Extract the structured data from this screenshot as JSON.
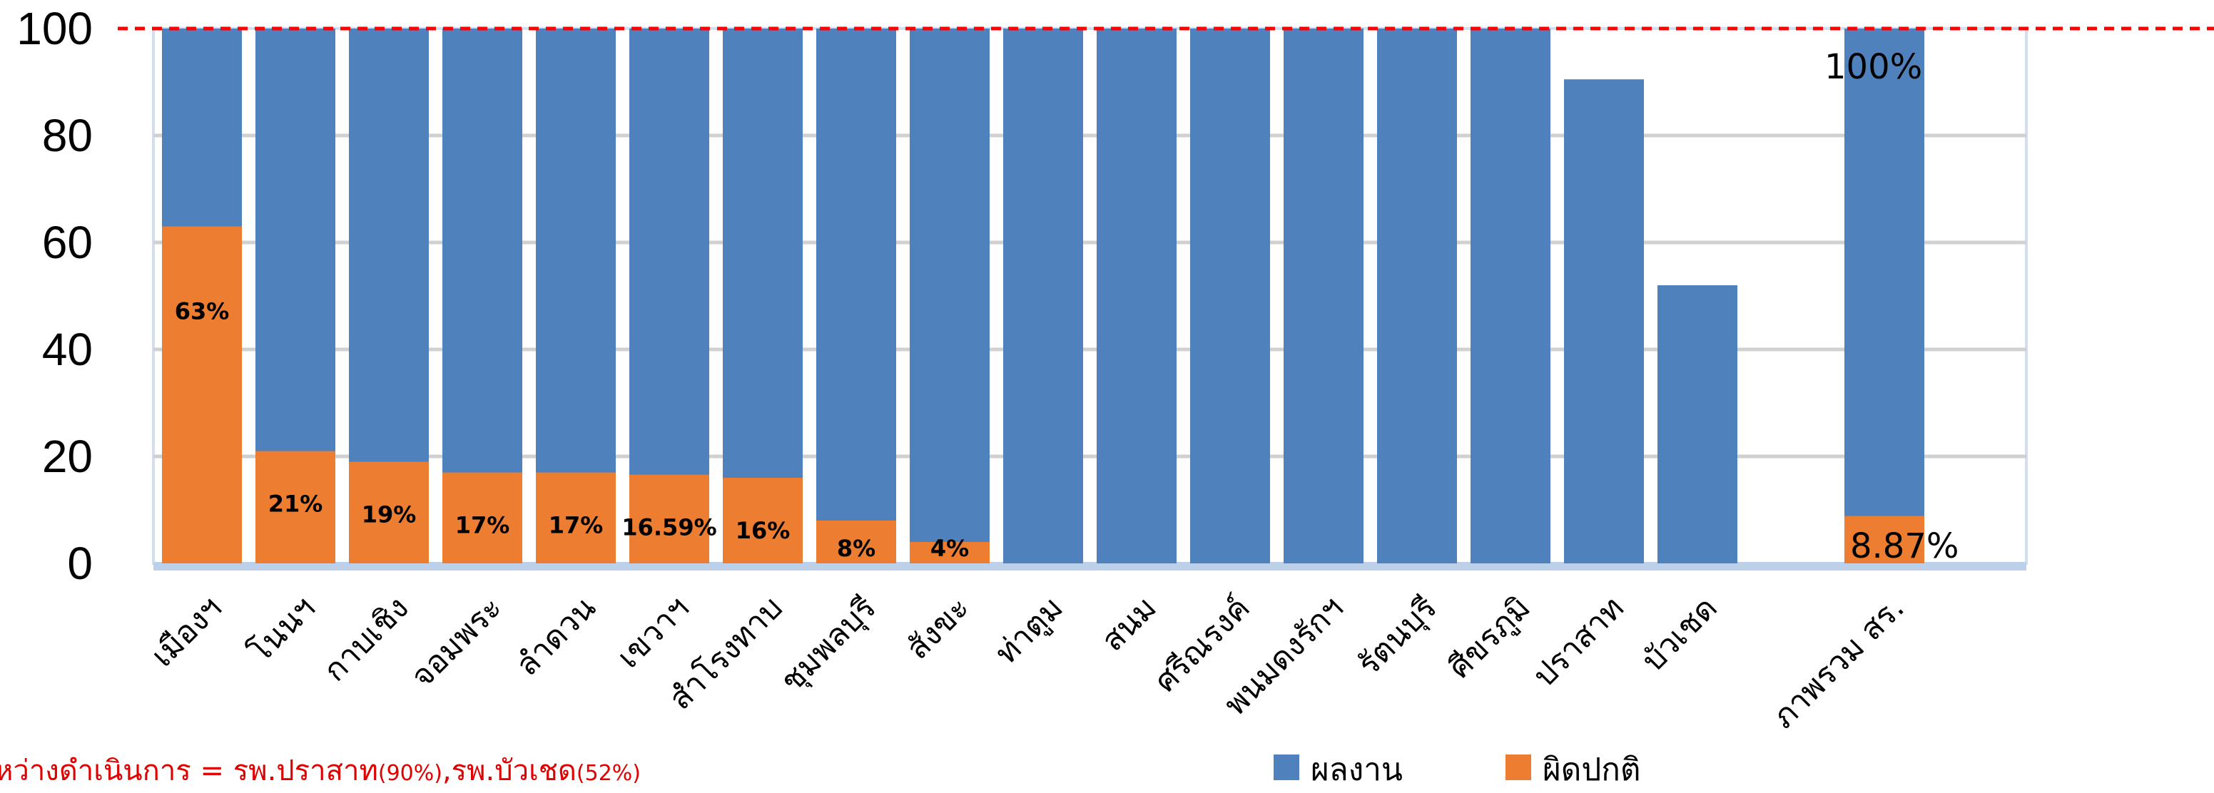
{
  "chart_data": {
    "type": "bar",
    "stacking": "overlay",
    "categories": [
      "เมืองฯ",
      "โนนฯ",
      "กาบเชิง",
      "จอมพระ",
      "ลำดวน",
      "เขวาฯ",
      "สำโรงทาบ",
      "ชุมพลบุรี",
      "สังขะ",
      "ท่าตูม",
      "สนม",
      "ศรีณรงค์",
      "พนมดงรักฯ",
      "รัตนบุรี",
      "ศีขรภูมิ",
      "ปราสาท",
      "บัวเชด",
      "",
      "ภาพรวม สร."
    ],
    "series": [
      {
        "name": "ผลงาน",
        "color": "#4f81bd",
        "values": [
          100,
          100,
          100,
          100,
          100,
          100,
          100,
          100,
          100,
          100,
          100,
          100,
          100,
          100,
          100,
          90.5,
          52,
          null,
          100
        ]
      },
      {
        "name": "ผิดปกติ",
        "color": "#ed7d31",
        "values": [
          63,
          21,
          19,
          17,
          17,
          16.59,
          16,
          8,
          4,
          0,
          0,
          0,
          0,
          0,
          0,
          0,
          0,
          null,
          8.87
        ]
      }
    ],
    "data_labels": [
      "63%",
      "21%",
      "19%",
      "17%",
      "17%",
      "16.59%",
      "16%",
      "8%",
      "4%",
      "",
      "",
      "",
      "",
      "",
      "",
      "",
      "",
      "",
      "8.87%"
    ],
    "total_label": "100%",
    "ylim": [
      0,
      100
    ],
    "yticks": [
      "0",
      "20",
      "40",
      "60",
      "80",
      "100"
    ],
    "target_line": {
      "value": 100,
      "color": "#ff0000",
      "style": "dashed"
    },
    "grid": true,
    "legend": {
      "placement": "bottom-right",
      "items": [
        {
          "label": "ผลงาน",
          "color": "#4f81bd"
        },
        {
          "label": "ผิดปกติ",
          "color": "#ed7d31"
        }
      ]
    }
  },
  "footnote": {
    "main": "หว่างดำเนินการ = รพ.ปราสาท",
    "p1": "(90%)",
    "sep": ",รพ.บัวเชด",
    "p2": "(52%)"
  }
}
